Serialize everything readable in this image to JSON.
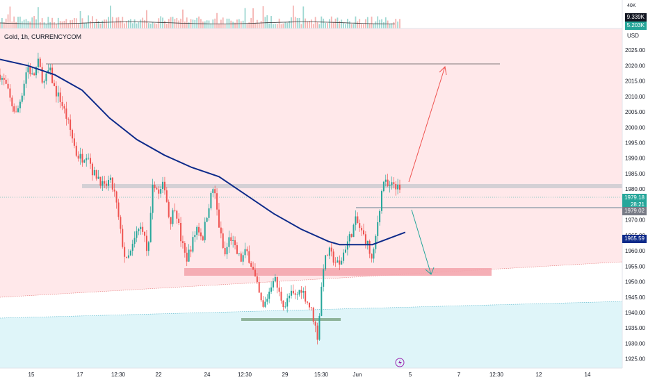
{
  "header": {
    "symbol_title": "Gold, 1h, CURRENCYCOM",
    "currency": "USD"
  },
  "volume_panel": {
    "scale_label": "40K",
    "tag_dark": "9.339K",
    "tag_green": "5.203K"
  },
  "price_tags": {
    "last_price": "1979.18",
    "countdown": "28:21",
    "level_price": "1979.02",
    "ma_price": "1965.59"
  },
  "colors": {
    "up": "#26a69a",
    "down": "#ef5350",
    "ma": "#0d2a8a",
    "zone_pink": "#ffe8ea",
    "zone_cyan": "#dff5f9",
    "tag_dark": "#131722",
    "tag_green": "#26a69a",
    "tag_grey": "#787b86",
    "tag_blue": "#0d2a8a"
  },
  "chart_data": {
    "type": "candlestick",
    "y_axis": {
      "ticks": [
        2025.0,
        2020.0,
        2015.0,
        2010.0,
        2005.0,
        2000.0,
        1995.0,
        1990.0,
        1985.0,
        1980.0,
        1975.0,
        1970.0,
        1965.0,
        1960.0,
        1955.0,
        1950.0,
        1945.0,
        1940.0,
        1935.0,
        1930.0,
        1925.0
      ],
      "tick_labels": [
        "2025.00",
        "2020.00",
        "2015.00",
        "2010.00",
        "2005.00",
        "2000.00",
        "1995.00",
        "1990.00",
        "1985.00",
        "1980.00",
        "1975.00",
        "1970.00",
        "1965.00",
        "1960.00",
        "1955.00",
        "1950.00",
        "1945.00",
        "1940.00",
        "1935.00",
        "1930.00",
        "1925.00"
      ],
      "range": [
        1922,
        2032
      ]
    },
    "x_axis": {
      "tick_labels": [
        "15",
        "17",
        "12:30",
        "22",
        "24",
        "12:30",
        "29",
        "15:30",
        "Jun",
        "5",
        "7",
        "12:30",
        "12",
        "14"
      ]
    },
    "price_path": [
      [
        0,
        2017
      ],
      [
        1,
        2014
      ],
      [
        2,
        2008
      ],
      [
        3,
        2004
      ],
      [
        4,
        2011
      ],
      [
        5,
        2020
      ],
      [
        6,
        2016
      ],
      [
        7,
        2021
      ],
      [
        8,
        2014
      ],
      [
        9,
        2019
      ],
      [
        10,
        2012
      ],
      [
        11,
        2009
      ],
      [
        12,
        2004
      ],
      [
        13,
        1998
      ],
      [
        14,
        1991
      ],
      [
        15,
        1990
      ],
      [
        16,
        1992
      ],
      [
        17,
        1985
      ],
      [
        18,
        1984
      ],
      [
        19,
        1980
      ],
      [
        20,
        1983
      ],
      [
        21,
        1978
      ],
      [
        22,
        1966
      ],
      [
        23,
        1956
      ],
      [
        24,
        1960
      ],
      [
        25,
        1966
      ],
      [
        26,
        1968
      ],
      [
        27,
        1958
      ],
      [
        28,
        1983
      ],
      [
        29,
        1978
      ],
      [
        30,
        1982
      ],
      [
        31,
        1969
      ],
      [
        32,
        1975
      ],
      [
        33,
        1964
      ],
      [
        34,
        1957
      ],
      [
        35,
        1962
      ],
      [
        36,
        1968
      ],
      [
        37,
        1964
      ],
      [
        38,
        1974
      ],
      [
        39,
        1981
      ],
      [
        40,
        1968
      ],
      [
        41,
        1958
      ],
      [
        42,
        1965
      ],
      [
        43,
        1960
      ],
      [
        44,
        1957
      ],
      [
        45,
        1960
      ],
      [
        46,
        1955
      ],
      [
        47,
        1948
      ],
      [
        48,
        1941
      ],
      [
        49,
        1946
      ],
      [
        50,
        1952
      ],
      [
        51,
        1946
      ],
      [
        52,
        1942
      ],
      [
        53,
        1946
      ],
      [
        54,
        1945
      ],
      [
        55,
        1948
      ],
      [
        56,
        1944
      ],
      [
        57,
        1940
      ],
      [
        58,
        1932
      ],
      [
        59,
        1955
      ],
      [
        60,
        1960
      ],
      [
        61,
        1957
      ],
      [
        62,
        1955
      ],
      [
        63,
        1961
      ],
      [
        64,
        1965
      ],
      [
        65,
        1970
      ],
      [
        66,
        1966
      ],
      [
        67,
        1963
      ],
      [
        68,
        1956
      ],
      [
        69,
        1970
      ],
      [
        70,
        1983
      ],
      [
        71,
        1980
      ],
      [
        72,
        1982
      ],
      [
        73,
        1979
      ]
    ],
    "moving_average": [
      [
        0,
        2022
      ],
      [
        5,
        2020
      ],
      [
        10,
        2017
      ],
      [
        15,
        2012
      ],
      [
        20,
        2003
      ],
      [
        25,
        1996
      ],
      [
        30,
        1991
      ],
      [
        35,
        1987
      ],
      [
        40,
        1984
      ],
      [
        45,
        1978
      ],
      [
        50,
        1972
      ],
      [
        55,
        1967
      ],
      [
        60,
        1963
      ],
      [
        62,
        1962
      ],
      [
        65,
        1962
      ],
      [
        68,
        1962
      ],
      [
        71,
        1964
      ],
      [
        74,
        1966
      ]
    ],
    "annotations": {
      "resistance_level": 2022,
      "upper_zone": 1984,
      "current_level": 1979,
      "support_zone": [
        1954,
        1956
      ],
      "lower_support": 1939
    }
  }
}
